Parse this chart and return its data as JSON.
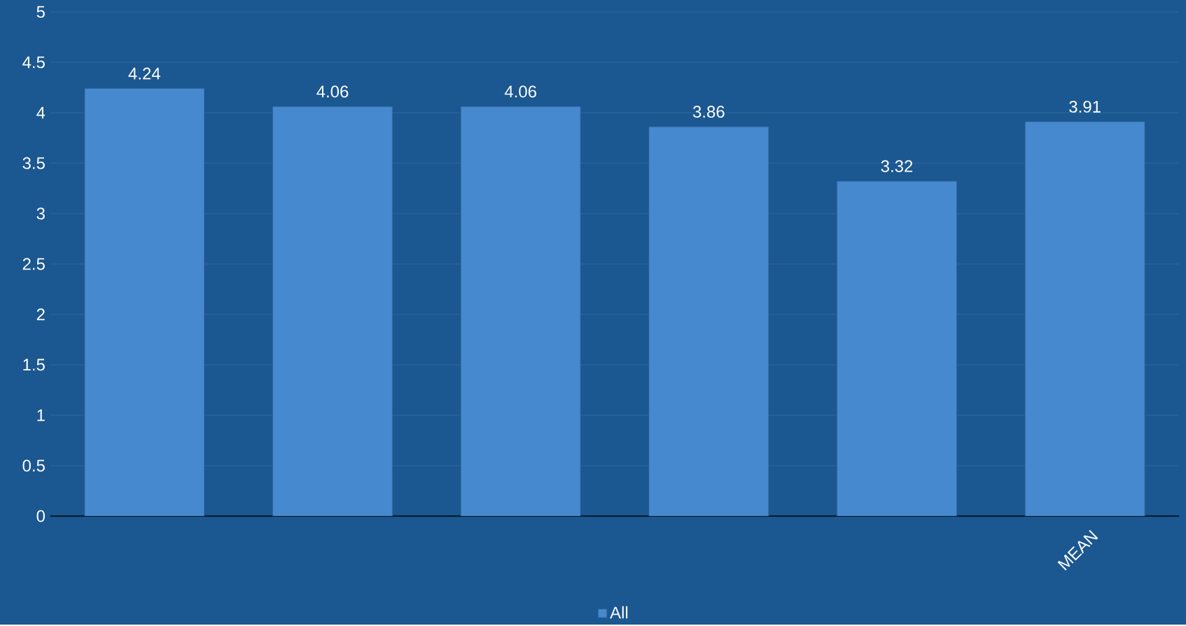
{
  "chart_data": {
    "type": "bar",
    "categories": [
      null,
      null,
      null,
      null,
      null,
      "MEAN"
    ],
    "series": [
      {
        "name": "All",
        "color": "#4689cf",
        "values": [
          4.24,
          4.06,
          4.06,
          3.86,
          3.32,
          3.91
        ]
      }
    ],
    "ylim": [
      0,
      5
    ],
    "yticks": [
      0,
      0.5,
      1,
      1.5,
      2,
      2.5,
      3,
      3.5,
      4,
      4.5,
      5
    ],
    "grid": "y",
    "legend": "bottom",
    "data_labels": true
  }
}
